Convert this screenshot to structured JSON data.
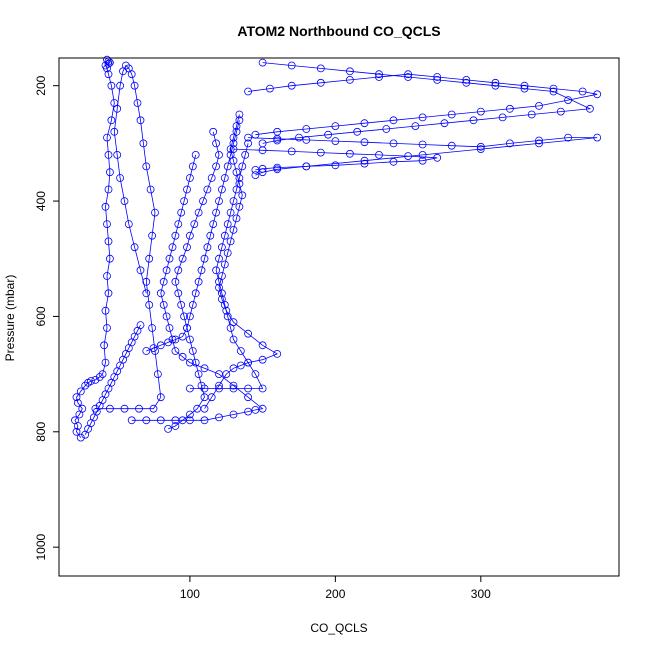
{
  "chart_data": {
    "type": "scatter",
    "title": "ATOM2 Northbound CO_QCLS",
    "xlabel": "CO_QCLS",
    "ylabel": "Pressure (mbar)",
    "xlim": [
      10,
      395
    ],
    "ylim": [
      1050,
      152
    ],
    "y_reversed": true,
    "x_ticks": [
      100,
      200,
      300
    ],
    "y_ticks": [
      200,
      400,
      600,
      800,
      1000
    ],
    "marker": "open-circle",
    "line_style": "solid",
    "color": "#0000ff",
    "grid": false,
    "series": [
      {
        "x": [
          25,
          22,
          23,
          21,
          24,
          26,
          23,
          22,
          25,
          28,
          30,
          32,
          35,
          38,
          40,
          42,
          41,
          43,
          42,
          44,
          43,
          45,
          44,
          43,
          42,
          44,
          45,
          44,
          43,
          46,
          48,
          46,
          44,
          43,
          42,
          44,
          45,
          44,
          43
        ],
        "y": [
          810,
          800,
          790,
          780,
          770,
          760,
          750,
          740,
          730,
          720,
          715,
          712,
          710,
          705,
          700,
          680,
          650,
          620,
          590,
          560,
          530,
          500,
          470,
          440,
          410,
          380,
          350,
          320,
          290,
          260,
          230,
          200,
          180,
          170,
          165,
          162,
          160,
          158,
          155
        ]
      },
      {
        "x": [
          35,
          45,
          55,
          65,
          75,
          80,
          78,
          76,
          74,
          72,
          70,
          72,
          74,
          76,
          73,
          70,
          68,
          66,
          64,
          62,
          60,
          58,
          56,
          54,
          52,
          50,
          48,
          50,
          52,
          55,
          58,
          62,
          66,
          70
        ],
        "y": [
          760,
          760,
          760,
          760,
          760,
          740,
          700,
          660,
          620,
          580,
          540,
          500,
          460,
          420,
          380,
          340,
          300,
          260,
          230,
          200,
          180,
          170,
          165,
          175,
          200,
          240,
          280,
          320,
          360,
          400,
          440,
          480,
          520,
          560
        ]
      },
      {
        "x": [
          60,
          70,
          80,
          90,
          100,
          110,
          120,
          130,
          140,
          145,
          150,
          140,
          130,
          120,
          110,
          100,
          95,
          90,
          88,
          86,
          84,
          82,
          80,
          82,
          84,
          86,
          88,
          90,
          92,
          94,
          96,
          98,
          100,
          102,
          104
        ],
        "y": [
          780,
          780,
          780,
          780,
          780,
          780,
          775,
          770,
          765,
          762,
          760,
          740,
          720,
          700,
          690,
          680,
          670,
          660,
          640,
          620,
          600,
          580,
          560,
          540,
          520,
          500,
          480,
          460,
          440,
          420,
          400,
          380,
          360,
          340,
          320
        ]
      },
      {
        "x": [
          85,
          90,
          95,
          100,
          105,
          110,
          108,
          106,
          104,
          102,
          100,
          98,
          96,
          94,
          92,
          90,
          92,
          95,
          98,
          100,
          103,
          106,
          109,
          112,
          115,
          118,
          120,
          118,
          116
        ],
        "y": [
          795,
          790,
          780,
          770,
          760,
          740,
          720,
          700,
          680,
          660,
          640,
          620,
          600,
          580,
          560,
          540,
          520,
          500,
          480,
          460,
          440,
          420,
          400,
          380,
          360,
          340,
          320,
          300,
          280
        ]
      },
      {
        "x": [
          110,
          115,
          120,
          125,
          130,
          135,
          140,
          150,
          160,
          150,
          140,
          130,
          125,
          122,
          120,
          122,
          124,
          126,
          128,
          130,
          132,
          134,
          136,
          134,
          132,
          130,
          128,
          130,
          132,
          134
        ],
        "y": [
          760,
          740,
          720,
          700,
          690,
          685,
          680,
          675,
          665,
          650,
          630,
          610,
          590,
          570,
          550,
          530,
          510,
          490,
          470,
          450,
          430,
          410,
          390,
          370,
          350,
          330,
          310,
          290,
          270,
          250
        ]
      },
      {
        "x": [
          100,
          110,
          120,
          130,
          140,
          150,
          145,
          140,
          135,
          130,
          128,
          126,
          124,
          122,
          120,
          118,
          120,
          122,
          124,
          126,
          128,
          130,
          132,
          134,
          136,
          138,
          140
        ],
        "y": [
          725,
          725,
          725,
          725,
          725,
          725,
          700,
          680,
          660,
          640,
          620,
          600,
          580,
          560,
          540,
          520,
          500,
          480,
          460,
          440,
          420,
          400,
          380,
          360,
          340,
          320,
          300
        ]
      },
      {
        "x": [
          70,
          75,
          80,
          85,
          90,
          95,
          98,
          100,
          102,
          104,
          106,
          108,
          110,
          112,
          114,
          116,
          118,
          120,
          122,
          124,
          126,
          128,
          130,
          132,
          134
        ],
        "y": [
          660,
          655,
          650,
          645,
          640,
          635,
          620,
          600,
          580,
          560,
          540,
          520,
          500,
          480,
          460,
          440,
          420,
          400,
          380,
          360,
          340,
          320,
          300,
          280,
          260
        ]
      },
      {
        "x": [
          140,
          155,
          170,
          190,
          210,
          230,
          250,
          270,
          290,
          310,
          330,
          350,
          370,
          380,
          360,
          340,
          320,
          300,
          280,
          260,
          240,
          220,
          200,
          180,
          160,
          145
        ],
        "y": [
          210,
          205,
          200,
          195,
          190,
          185,
          180,
          185,
          190,
          195,
          200,
          205,
          210,
          215,
          225,
          235,
          240,
          245,
          250,
          255,
          260,
          265,
          270,
          275,
          280,
          285
        ]
      },
      {
        "x": [
          150,
          170,
          190,
          210,
          230,
          250,
          270,
          290,
          310,
          330,
          350,
          375,
          355,
          335,
          315,
          295,
          275,
          255,
          235,
          215,
          195,
          175,
          160,
          150
        ],
        "y": [
          160,
          165,
          170,
          175,
          180,
          185,
          190,
          195,
          200,
          205,
          210,
          240,
          245,
          250,
          255,
          260,
          265,
          270,
          275,
          280,
          285,
          290,
          295,
          300
        ]
      },
      {
        "x": [
          140,
          160,
          180,
          200,
          220,
          240,
          260,
          280,
          300,
          320,
          340,
          360,
          380,
          340,
          300,
          260,
          220,
          180,
          160,
          150,
          145
        ],
        "y": [
          290,
          292,
          294,
          296,
          298,
          300,
          302,
          304,
          306,
          300,
          295,
          290,
          290,
          300,
          310,
          320,
          330,
          340,
          345,
          350,
          355
        ]
      },
      {
        "x": [
          130,
          150,
          170,
          190,
          210,
          230,
          250,
          270,
          260,
          240,
          220,
          200,
          180,
          160,
          150,
          145
        ],
        "y": [
          310,
          312,
          314,
          316,
          318,
          320,
          322,
          325,
          330,
          332,
          335,
          338,
          340,
          342,
          344,
          346
        ]
      },
      {
        "x": [
          28,
          30,
          32,
          34,
          36,
          38,
          40,
          42,
          44,
          46,
          48,
          50,
          52,
          54,
          56,
          58,
          60,
          62,
          64,
          66
        ],
        "y": [
          805,
          795,
          785,
          775,
          765,
          755,
          745,
          735,
          725,
          715,
          705,
          695,
          685,
          675,
          665,
          655,
          645,
          635,
          625,
          615
        ]
      }
    ]
  }
}
